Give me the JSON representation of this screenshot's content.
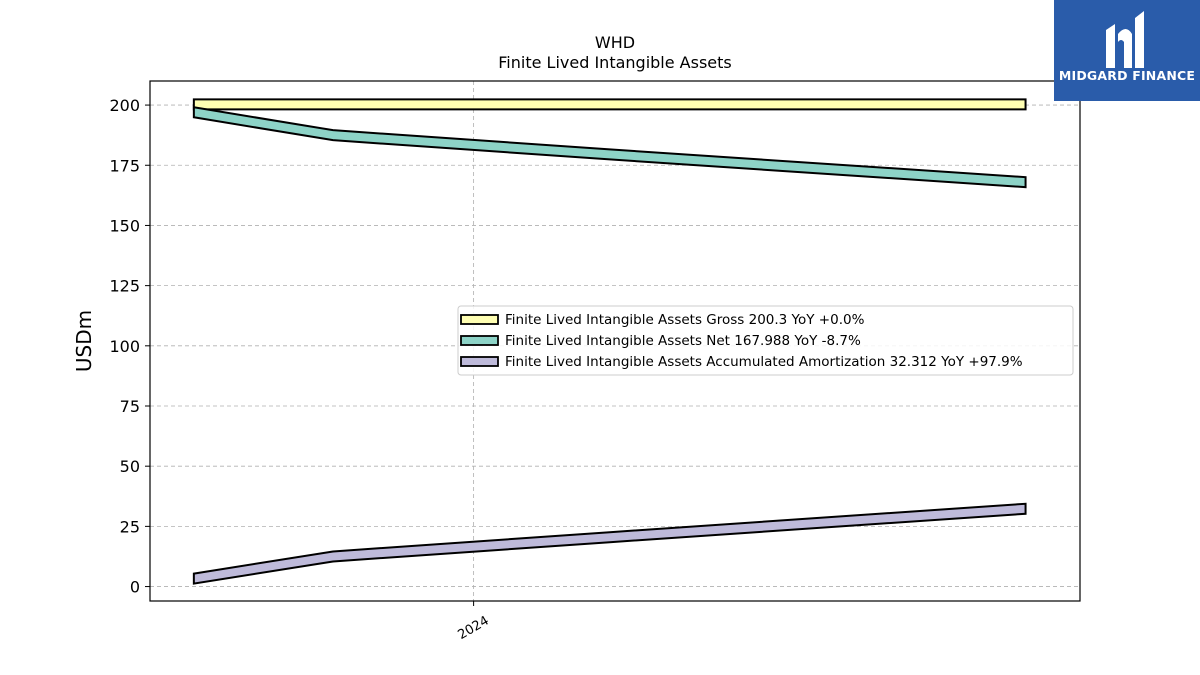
{
  "brand": {
    "name": "MIDGARD FINANCE",
    "color": "#2a5caa"
  },
  "chart_data": {
    "type": "area",
    "title": "WHD",
    "subtitle": "Finite Lived Intangible Assets",
    "ylabel": "USDm",
    "xlabel": "",
    "x": [
      "2023-06-30",
      "2023-09-30",
      "2024-03-31",
      "2024-12-31"
    ],
    "x_tick_labels": [
      "2024"
    ],
    "ylim": [
      -6,
      210
    ],
    "y_ticks": [
      0,
      25,
      50,
      75,
      100,
      125,
      150,
      175,
      200
    ],
    "grid": true,
    "legend_position": "center-right",
    "series": [
      {
        "name": "Finite Lived Intangible Assets Gross",
        "legend_value": "200.3",
        "legend_yoy": "YoY +0.0%",
        "color": "#ffffb3",
        "values": [
          200.3,
          200.3,
          200.3,
          200.3
        ]
      },
      {
        "name": "Finite Lived Intangible Assets Net",
        "legend_value": "167.988",
        "legend_yoy": "YoY -8.7%",
        "color": "#8dd3c7",
        "values": [
          197.0,
          187.5,
          179.5,
          167.988
        ]
      },
      {
        "name": "Finite Lived Intangible Assets Accumulated Amortization",
        "legend_value": "32.312",
        "legend_yoy": "YoY +97.9%",
        "color": "#bebada",
        "values": [
          3.3,
          12.5,
          20.5,
          32.312
        ]
      }
    ]
  }
}
